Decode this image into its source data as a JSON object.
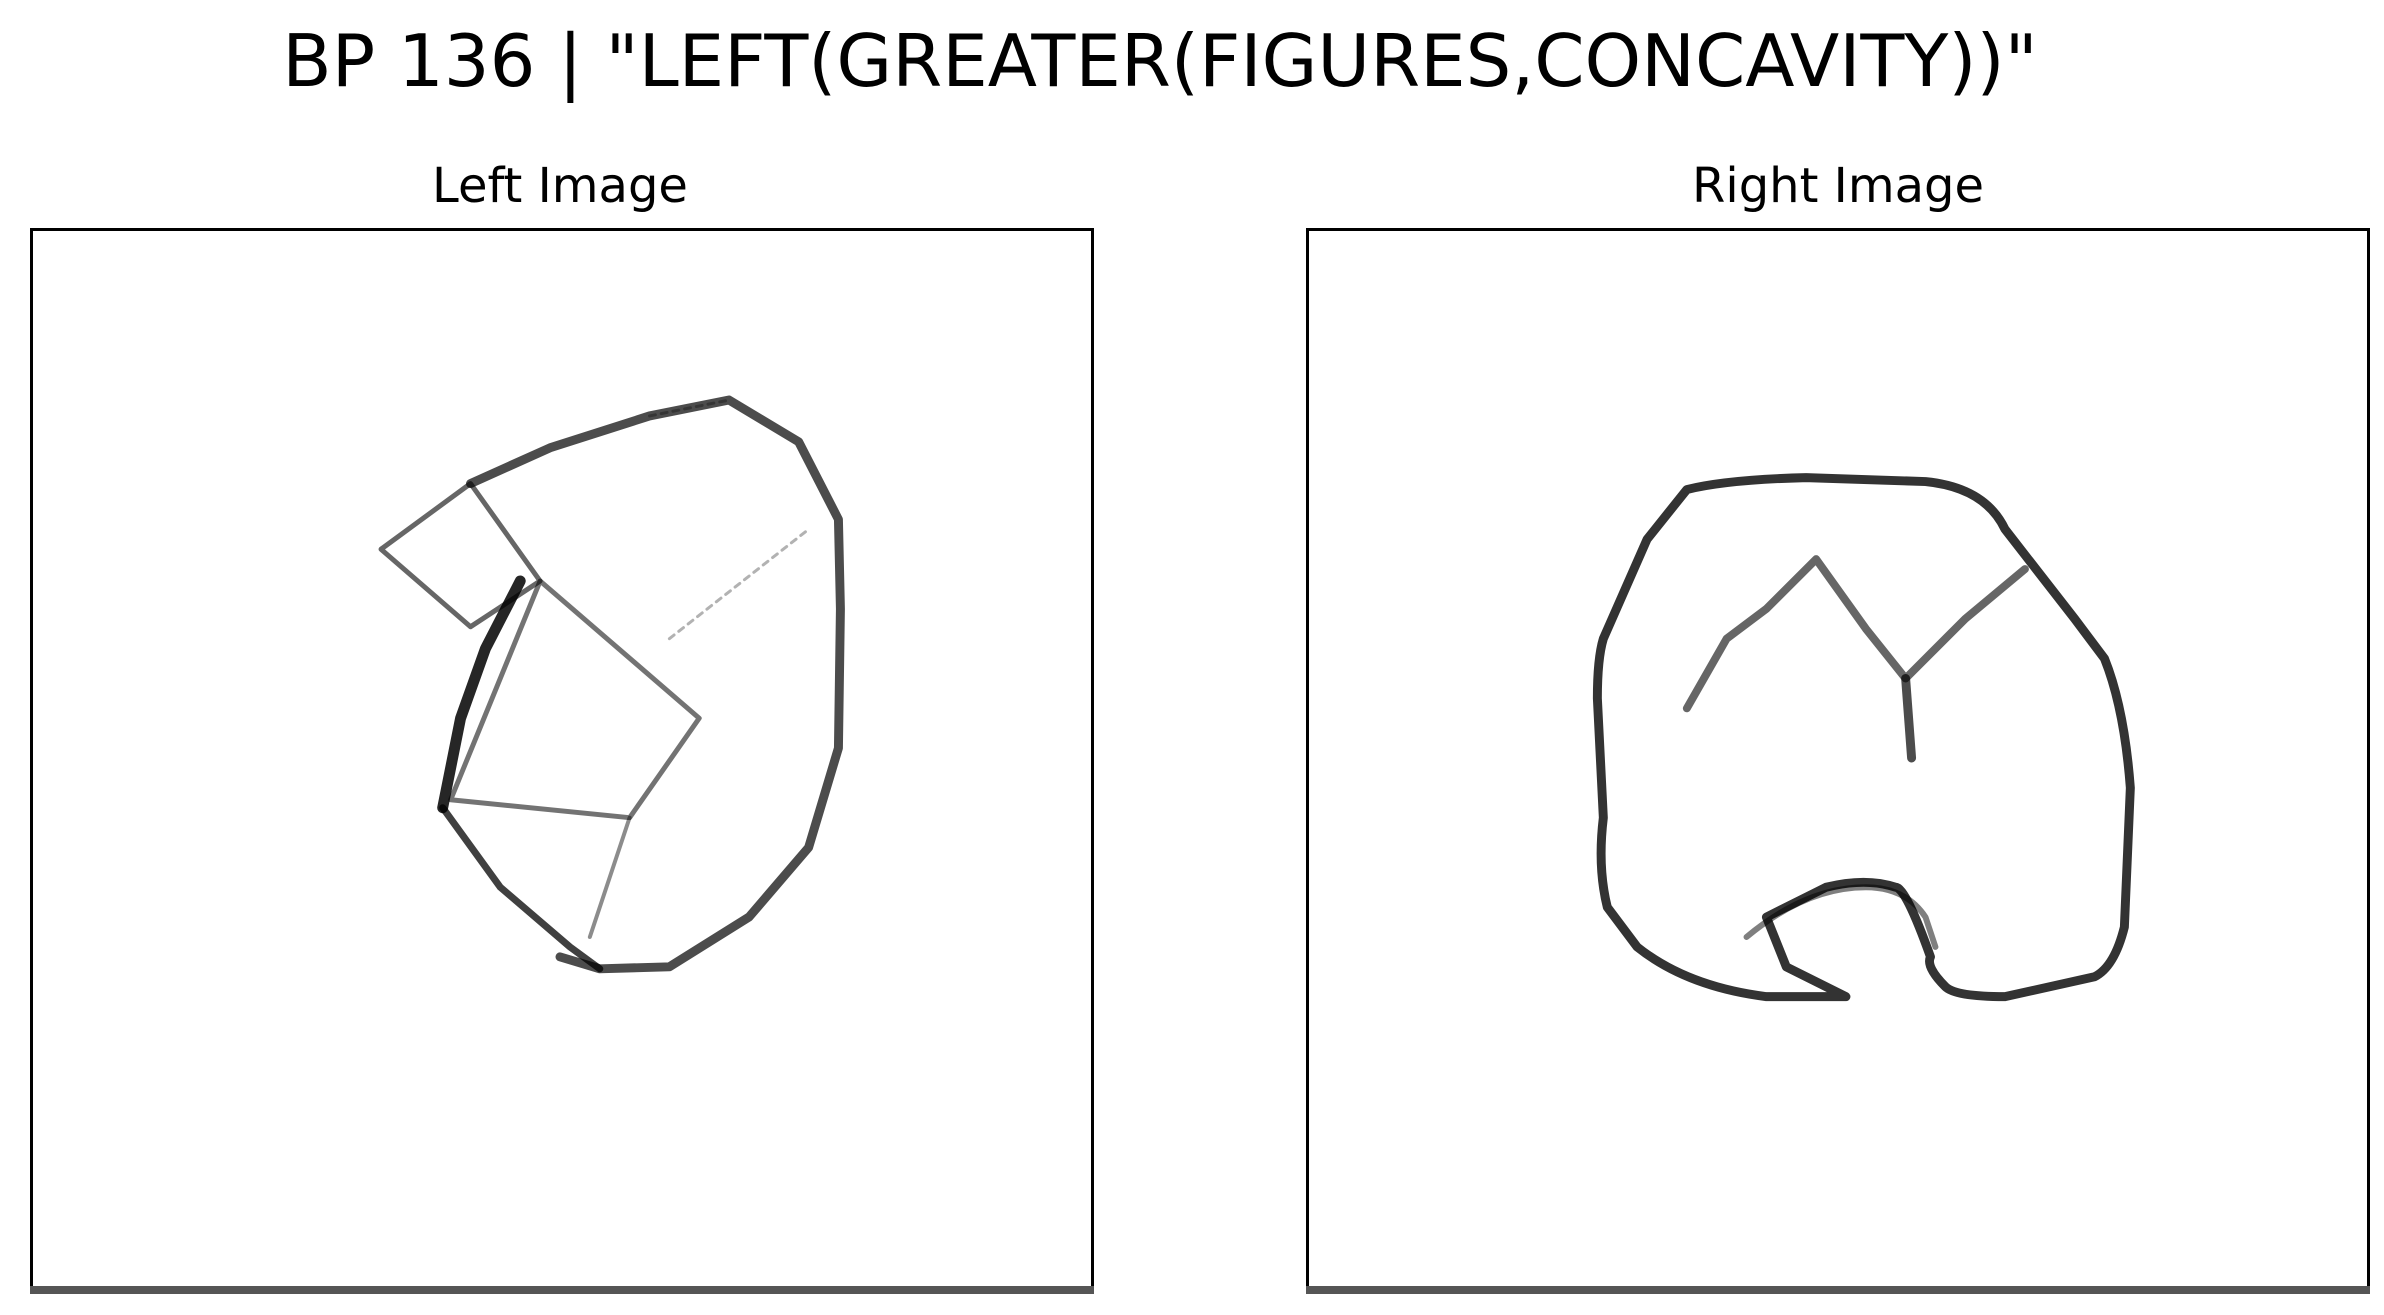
{
  "title": "BP 136 | \"LEFT(GREATER(FIGURES,CONCAVITY))\"",
  "panels": [
    {
      "title": "Left Image"
    },
    {
      "title": "Right Image"
    }
  ],
  "colors": {
    "background": "#ffffff",
    "stroke": "#000000",
    "frame": "#000000"
  }
}
